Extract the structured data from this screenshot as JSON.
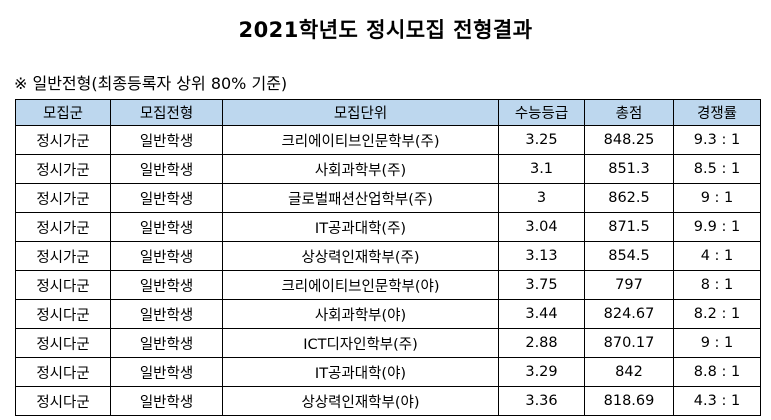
{
  "title": "2021학년도 정시모집 전형결과",
  "subtitle": "※ 일반전형(최종등록자 상위 80% 기준)",
  "colors": {
    "header_bg": "#bdd7ee",
    "border": "#000000"
  },
  "table": {
    "headers": [
      "모집군",
      "모집전형",
      "모집단위",
      "수능등급",
      "총점",
      "경쟁률"
    ],
    "rows": [
      [
        "정시가군",
        "일반학생",
        "크리에이티브인문학부(주)",
        "3.25",
        "848.25",
        "9.3 : 1"
      ],
      [
        "정시가군",
        "일반학생",
        "사회과학부(주)",
        "3.1",
        "851.3",
        "8.5 : 1"
      ],
      [
        "정시가군",
        "일반학생",
        "글로벌패션산업학부(주)",
        "3",
        "862.5",
        "9 : 1"
      ],
      [
        "정시가군",
        "일반학생",
        "IT공과대학(주)",
        "3.04",
        "871.5",
        "9.9 : 1"
      ],
      [
        "정시가군",
        "일반학생",
        "상상력인재학부(주)",
        "3.13",
        "854.5",
        "4 : 1"
      ],
      [
        "정시다군",
        "일반학생",
        "크리에이티브인문학부(야)",
        "3.75",
        "797",
        "8 : 1"
      ],
      [
        "정시다군",
        "일반학생",
        "사회과학부(야)",
        "3.44",
        "824.67",
        "8.2 : 1"
      ],
      [
        "정시다군",
        "일반학생",
        "ICT디자인학부(주)",
        "2.88",
        "870.17",
        "9 : 1"
      ],
      [
        "정시다군",
        "일반학생",
        "IT공과대학(야)",
        "3.29",
        "842",
        "8.8 : 1"
      ],
      [
        "정시다군",
        "일반학생",
        "상상력인재학부(야)",
        "3.36",
        "818.69",
        "4.3 : 1"
      ]
    ]
  }
}
